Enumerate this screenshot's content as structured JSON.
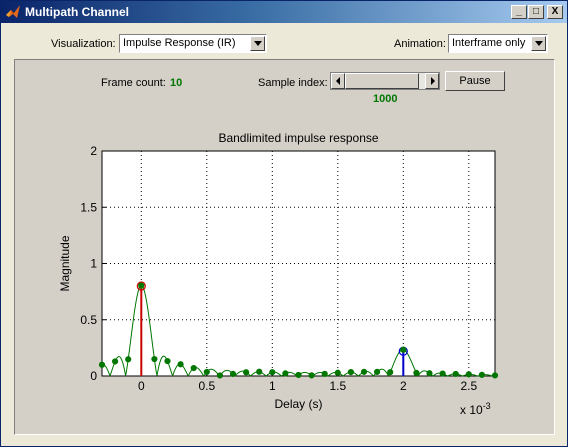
{
  "window": {
    "title": "Multipath Channel",
    "buttons": {
      "minimize": "_",
      "maximize": "□",
      "close": "X"
    }
  },
  "controls": {
    "visualization_label": "Visualization:",
    "visualization_value": "Impulse Response (IR)",
    "animation_label": "Animation:",
    "animation_value": "Interframe only"
  },
  "panel": {
    "frame_count_label": "Frame count:",
    "frame_count_value": "10",
    "sample_index_label": "Sample index:",
    "sample_index_value": "1000",
    "pause_label": "Pause"
  },
  "colors": {
    "green_curve": "#007700",
    "red_stem": "#cc0000",
    "blue_stem": "#0000cc",
    "accent_text": "#007700"
  },
  "chart_data": {
    "type": "line",
    "title": "Bandlimited impulse response",
    "xlabel": "Delay (s)",
    "ylabel": "Magnitude",
    "x_exponent_label": "x 10",
    "x_exponent_power": "-3",
    "xlim": [
      -0.3,
      2.7
    ],
    "ylim": [
      0,
      2
    ],
    "xticks": [
      0,
      0.5,
      1,
      1.5,
      2,
      2.5
    ],
    "xtick_labels": [
      "0",
      "0.5",
      "1",
      "1.5",
      "2",
      "2.5"
    ],
    "yticks": [
      0,
      0.5,
      1,
      1.5,
      2
    ],
    "ytick_labels": [
      "0",
      "0.5",
      "1",
      "1.5",
      "2"
    ],
    "grid": true,
    "stems": [
      {
        "x": 0,
        "y": 0.8,
        "color": "red"
      },
      {
        "x": 2,
        "y": 0.22,
        "color": "blue"
      }
    ],
    "curve": {
      "name": "bandlimited",
      "components": [
        {
          "x0": 0,
          "amp": 0.8,
          "width": 0.12
        },
        {
          "x0": 2,
          "amp": 0.22,
          "width": 0.12
        }
      ],
      "x_start": -0.3,
      "x_end": 2.7
    },
    "samples_x": [
      -0.3,
      -0.2,
      -0.1,
      0,
      0.1,
      0.2,
      0.3,
      0.4,
      0.5,
      0.6,
      0.7,
      0.8,
      0.9,
      1.0,
      1.1,
      1.2,
      1.3,
      1.4,
      1.5,
      1.6,
      1.7,
      1.8,
      1.9,
      2.0,
      2.1,
      2.2,
      2.3,
      2.4,
      2.5,
      2.6,
      2.7
    ]
  }
}
